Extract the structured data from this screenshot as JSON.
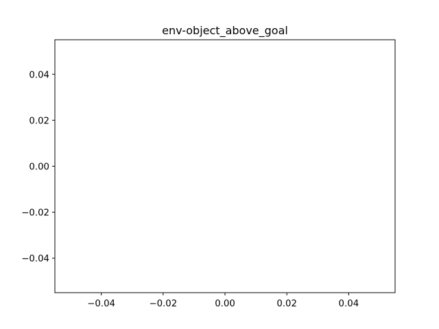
{
  "chart_data": {
    "type": "line",
    "title": "env-object_above_goal",
    "xlabel": "",
    "ylabel": "",
    "xlim": [
      -0.055,
      0.055
    ],
    "ylim": [
      -0.055,
      0.055
    ],
    "x_ticks": [
      -0.04,
      -0.02,
      0.0,
      0.02,
      0.04
    ],
    "x_tick_labels": [
      "−0.04",
      "−0.02",
      "0.00",
      "0.02",
      "0.04"
    ],
    "y_ticks": [
      -0.04,
      -0.02,
      0.0,
      0.02,
      0.04
    ],
    "y_tick_labels": [
      "−0.04",
      "−0.02",
      "0.00",
      "0.02",
      "0.04"
    ],
    "grid": false,
    "series": []
  }
}
